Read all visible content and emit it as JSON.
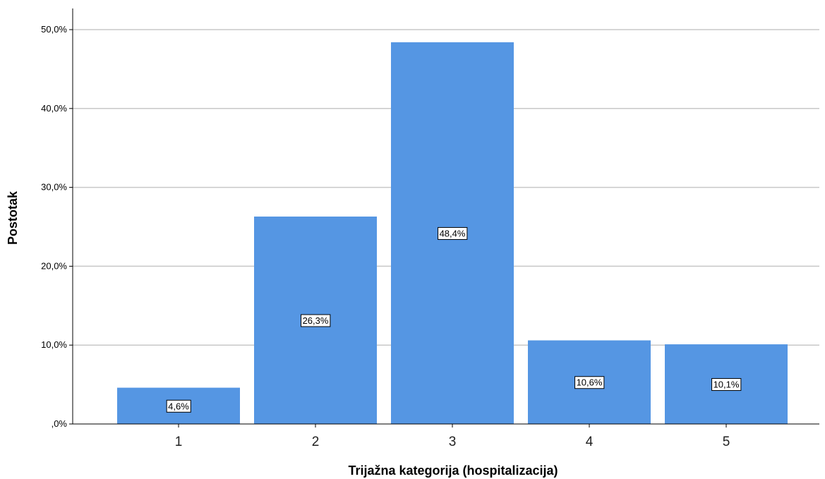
{
  "chart_data": {
    "type": "bar",
    "categories": [
      "1",
      "2",
      "3",
      "4",
      "5"
    ],
    "values": [
      4.6,
      26.3,
      48.4,
      10.6,
      10.1
    ],
    "data_labels": [
      "4,6%",
      "26,3%",
      "48,4%",
      "10,6%",
      "10,1%"
    ],
    "xlabel": "Trijažna kategorija (hospitalizacija)",
    "ylabel": "Postotak",
    "ylim": [
      0,
      50
    ],
    "yticks": [
      0,
      10,
      20,
      30,
      40,
      50
    ],
    "ytick_labels": [
      ",0%",
      "10,0%",
      "20,0%",
      "30,0%",
      "40,0%",
      "50,0%"
    ],
    "grid": true,
    "legend": "none",
    "colors": {
      "bar": "#5596E3",
      "grid": "#C8C8C8",
      "axis": "#000000"
    }
  }
}
